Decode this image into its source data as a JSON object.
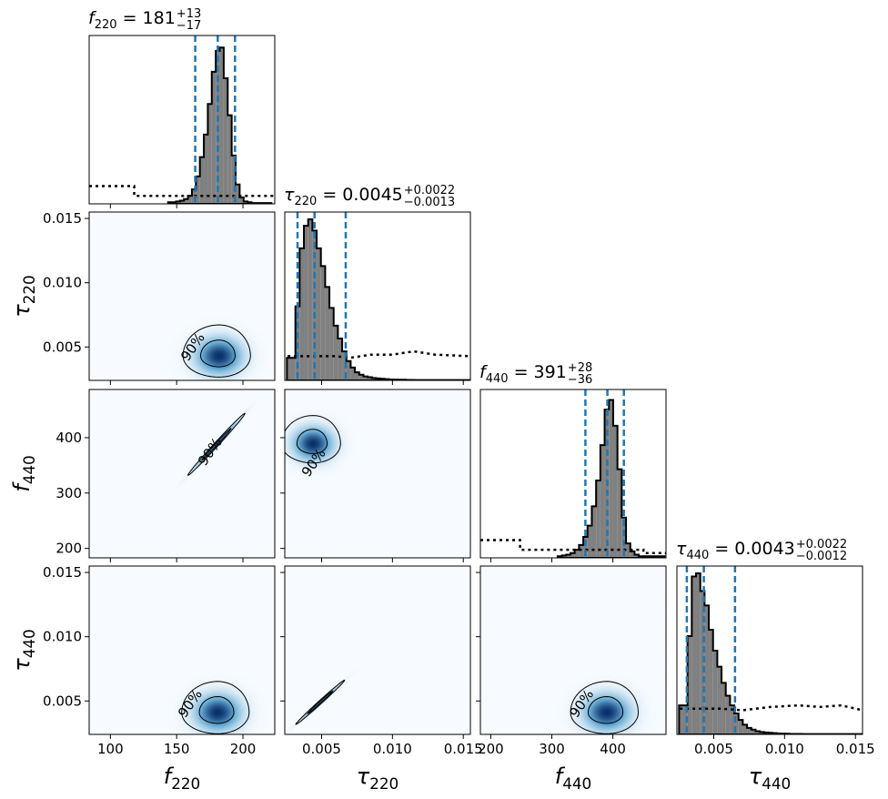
{
  "chart_data": {
    "type": "corner",
    "parameters": [
      {
        "key": "f220",
        "symbol": "f",
        "subscript": "220",
        "range": [
          84,
          224
        ],
        "ticks": [
          100,
          150,
          200
        ],
        "tick_labels": [
          "100",
          "150",
          "200"
        ],
        "title": {
          "value": "181",
          "plus": "+13",
          "minus": "−17"
        },
        "quantiles": [
          164,
          181,
          194
        ],
        "hist": [
          [
            145,
            0.01
          ],
          [
            148,
            0.01
          ],
          [
            151,
            0.015
          ],
          [
            154,
            0.02
          ],
          [
            157,
            0.03
          ],
          [
            160,
            0.05
          ],
          [
            163,
            0.09
          ],
          [
            166,
            0.17
          ],
          [
            169,
            0.29
          ],
          [
            172,
            0.43
          ],
          [
            175,
            0.62
          ],
          [
            178,
            0.82
          ],
          [
            181,
            0.95
          ],
          [
            184,
            0.97
          ],
          [
            187,
            0.78
          ],
          [
            190,
            0.55
          ],
          [
            193,
            0.3
          ],
          [
            196,
            0.12
          ],
          [
            199,
            0.04
          ],
          [
            202,
            0.015
          ],
          [
            205,
            0.01
          ],
          [
            208,
            0.005
          ],
          [
            211,
            0.005
          ],
          [
            214,
            0.005
          ],
          [
            217,
            0.005
          ],
          [
            220,
            0.005
          ]
        ],
        "prior": [
          [
            84,
            0.11
          ],
          [
            118,
            0.11
          ],
          [
            118,
            0.05
          ],
          [
            224,
            0.05
          ]
        ]
      },
      {
        "key": "tau220",
        "symbol": "τ",
        "subscript": "220",
        "range": [
          0.0024,
          0.0155
        ],
        "ticks": [
          0.005,
          0.01,
          0.015
        ],
        "tick_labels": [
          "0.005",
          "0.010",
          "0.015"
        ],
        "title": {
          "value": "0.0045",
          "plus": "+0.0022",
          "minus": "−0.0013"
        },
        "quantiles": [
          0.0033,
          0.0045,
          0.0067
        ],
        "hist": [
          [
            0.0027,
            0.14
          ],
          [
            0.003,
            0.14
          ],
          [
            0.0033,
            0.46
          ],
          [
            0.0036,
            0.82
          ],
          [
            0.0039,
            0.96
          ],
          [
            0.0042,
            1.0
          ],
          [
            0.0045,
            0.93
          ],
          [
            0.0048,
            0.82
          ],
          [
            0.0051,
            0.71
          ],
          [
            0.0054,
            0.58
          ],
          [
            0.0057,
            0.45
          ],
          [
            0.006,
            0.34
          ],
          [
            0.0063,
            0.26
          ],
          [
            0.0066,
            0.18
          ],
          [
            0.0069,
            0.12
          ],
          [
            0.0072,
            0.08
          ],
          [
            0.0075,
            0.05
          ],
          [
            0.0078,
            0.035
          ],
          [
            0.0081,
            0.025
          ],
          [
            0.0084,
            0.02
          ],
          [
            0.0087,
            0.015
          ],
          [
            0.009,
            0.012
          ],
          [
            0.0093,
            0.01
          ],
          [
            0.0096,
            0.008
          ],
          [
            0.0099,
            0.006
          ],
          [
            0.0102,
            0.005
          ],
          [
            0.0105,
            0.004
          ],
          [
            0.0108,
            0.004
          ],
          [
            0.0111,
            0.003
          ],
          [
            0.0114,
            0.003
          ],
          [
            0.0117,
            0.002
          ],
          [
            0.012,
            0.002
          ],
          [
            0.0123,
            0.002
          ],
          [
            0.0126,
            0.002
          ],
          [
            0.0129,
            0.002
          ],
          [
            0.0132,
            0.002
          ],
          [
            0.0135,
            0.002
          ],
          [
            0.0138,
            0.002
          ],
          [
            0.0141,
            0.002
          ],
          [
            0.0144,
            0.002
          ],
          [
            0.0147,
            0.002
          ],
          [
            0.015,
            0.002
          ],
          [
            0.0153,
            0.002
          ]
        ],
        "prior": [
          [
            0.0026,
            0.15
          ],
          [
            0.006,
            0.15
          ],
          [
            0.007,
            0.14
          ],
          [
            0.0085,
            0.16
          ],
          [
            0.01,
            0.16
          ],
          [
            0.0115,
            0.18
          ],
          [
            0.013,
            0.16
          ],
          [
            0.0155,
            0.15
          ]
        ]
      },
      {
        "key": "f440",
        "symbol": "f",
        "subscript": "440",
        "range": [
          183,
          487
        ],
        "ticks": [
          200,
          300,
          400
        ],
        "tick_labels": [
          "200",
          "300",
          "400"
        ],
        "title": {
          "value": "391",
          "plus": "+28",
          "minus": "−36"
        },
        "quantiles": [
          355,
          391,
          418
        ],
        "hist": [
          [
            313,
            0.01
          ],
          [
            320,
            0.015
          ],
          [
            327,
            0.02
          ],
          [
            334,
            0.03
          ],
          [
            341,
            0.05
          ],
          [
            348,
            0.08
          ],
          [
            355,
            0.13
          ],
          [
            362,
            0.2
          ],
          [
            369,
            0.32
          ],
          [
            376,
            0.48
          ],
          [
            383,
            0.7
          ],
          [
            390,
            0.92
          ],
          [
            397,
            0.98
          ],
          [
            404,
            0.82
          ],
          [
            411,
            0.55
          ],
          [
            418,
            0.25
          ],
          [
            425,
            0.09
          ],
          [
            432,
            0.04
          ],
          [
            439,
            0.02
          ],
          [
            446,
            0.01
          ],
          [
            453,
            0.01
          ],
          [
            460,
            0.01
          ],
          [
            467,
            0.01
          ],
          [
            474,
            0.01
          ],
          [
            481,
            0.01
          ]
        ],
        "prior": [
          [
            183,
            0.11
          ],
          [
            248,
            0.11
          ],
          [
            248,
            0.05
          ],
          [
            450,
            0.05
          ],
          [
            450,
            0.03
          ],
          [
            487,
            0.03
          ]
        ]
      },
      {
        "key": "tau440",
        "symbol": "τ",
        "subscript": "440",
        "range": [
          0.0024,
          0.0155
        ],
        "ticks": [
          0.005,
          0.01,
          0.015
        ],
        "tick_labels": [
          "0.005",
          "0.010",
          "0.015"
        ],
        "title": {
          "value": "0.0043",
          "plus": "+0.0022",
          "minus": "−0.0012"
        },
        "quantiles": [
          0.0031,
          0.0043,
          0.0065
        ],
        "hist": [
          [
            0.0027,
            0.18
          ],
          [
            0.003,
            0.18
          ],
          [
            0.0033,
            0.61
          ],
          [
            0.0036,
            0.98
          ],
          [
            0.0039,
            1.0
          ],
          [
            0.0042,
            0.89
          ],
          [
            0.0045,
            0.8
          ],
          [
            0.0048,
            0.65
          ],
          [
            0.0051,
            0.52
          ],
          [
            0.0054,
            0.42
          ],
          [
            0.0057,
            0.32
          ],
          [
            0.006,
            0.24
          ],
          [
            0.0063,
            0.18
          ],
          [
            0.0066,
            0.13
          ],
          [
            0.0069,
            0.09
          ],
          [
            0.0072,
            0.06
          ],
          [
            0.0075,
            0.04
          ],
          [
            0.0078,
            0.03
          ],
          [
            0.0081,
            0.02
          ],
          [
            0.0084,
            0.015
          ],
          [
            0.0087,
            0.012
          ],
          [
            0.009,
            0.01
          ],
          [
            0.0093,
            0.008
          ],
          [
            0.0096,
            0.006
          ],
          [
            0.0099,
            0.005
          ],
          [
            0.0102,
            0.004
          ],
          [
            0.0105,
            0.003
          ],
          [
            0.0108,
            0.003
          ],
          [
            0.0111,
            0.003
          ],
          [
            0.0114,
            0.002
          ],
          [
            0.0117,
            0.002
          ],
          [
            0.012,
            0.002
          ],
          [
            0.0123,
            0.002
          ],
          [
            0.0126,
            0.002
          ],
          [
            0.0129,
            0.002
          ],
          [
            0.0132,
            0.002
          ],
          [
            0.0135,
            0.002
          ],
          [
            0.0138,
            0.002
          ],
          [
            0.0141,
            0.002
          ],
          [
            0.0144,
            0.002
          ],
          [
            0.0147,
            0.002
          ],
          [
            0.015,
            0.002
          ],
          [
            0.0153,
            0.002
          ]
        ],
        "prior": [
          [
            0.0026,
            0.16
          ],
          [
            0.0055,
            0.16
          ],
          [
            0.007,
            0.15
          ],
          [
            0.009,
            0.17
          ],
          [
            0.011,
            0.18
          ],
          [
            0.0125,
            0.17
          ],
          [
            0.014,
            0.18
          ],
          [
            0.0155,
            0.15
          ]
        ]
      }
    ],
    "pairs": [
      {
        "row": 1,
        "col": 0,
        "center": [
          182,
          0.0043
        ],
        "spread": [
          11,
          0.0009
        ],
        "rho": 0.0,
        "label_at": [
          165,
          0.0048
        ]
      },
      {
        "row": 2,
        "col": 0,
        "center": [
          180,
          388
        ],
        "spread": [
          10,
          26
        ],
        "rho": 0.995,
        "label_at": [
          178,
          370
        ]
      },
      {
        "row": 2,
        "col": 1,
        "center": [
          0.0044,
          389
        ],
        "spread": [
          0.0009,
          19
        ],
        "rho": 0.0,
        "label_at": [
          0.0047,
          350
        ]
      },
      {
        "row": 3,
        "col": 0,
        "center": [
          181,
          0.0041
        ],
        "spread": [
          11,
          0.0009
        ],
        "rho": 0.0,
        "label_at": [
          163,
          0.0046
        ]
      },
      {
        "row": 3,
        "col": 1,
        "center": [
          0.0049,
          0.0049
        ],
        "spread": [
          0.0008,
          0.0008
        ],
        "rho": 0.995,
        "label_at": null
      },
      {
        "row": 3,
        "col": 2,
        "center": [
          390,
          0.0041
        ],
        "spread": [
          24,
          0.0009
        ],
        "rho": 0.0,
        "label_at": [
          355,
          0.0046
        ]
      }
    ],
    "contour_label": "90%",
    "colormap": {
      "low": "#f7fbff",
      "mid": "#6baed6",
      "high": "#08306b"
    },
    "colors": {
      "quantile": "#1f77b4",
      "hist_fill": "#808080",
      "hist_edge": "#000000",
      "prior": "#000000"
    }
  }
}
